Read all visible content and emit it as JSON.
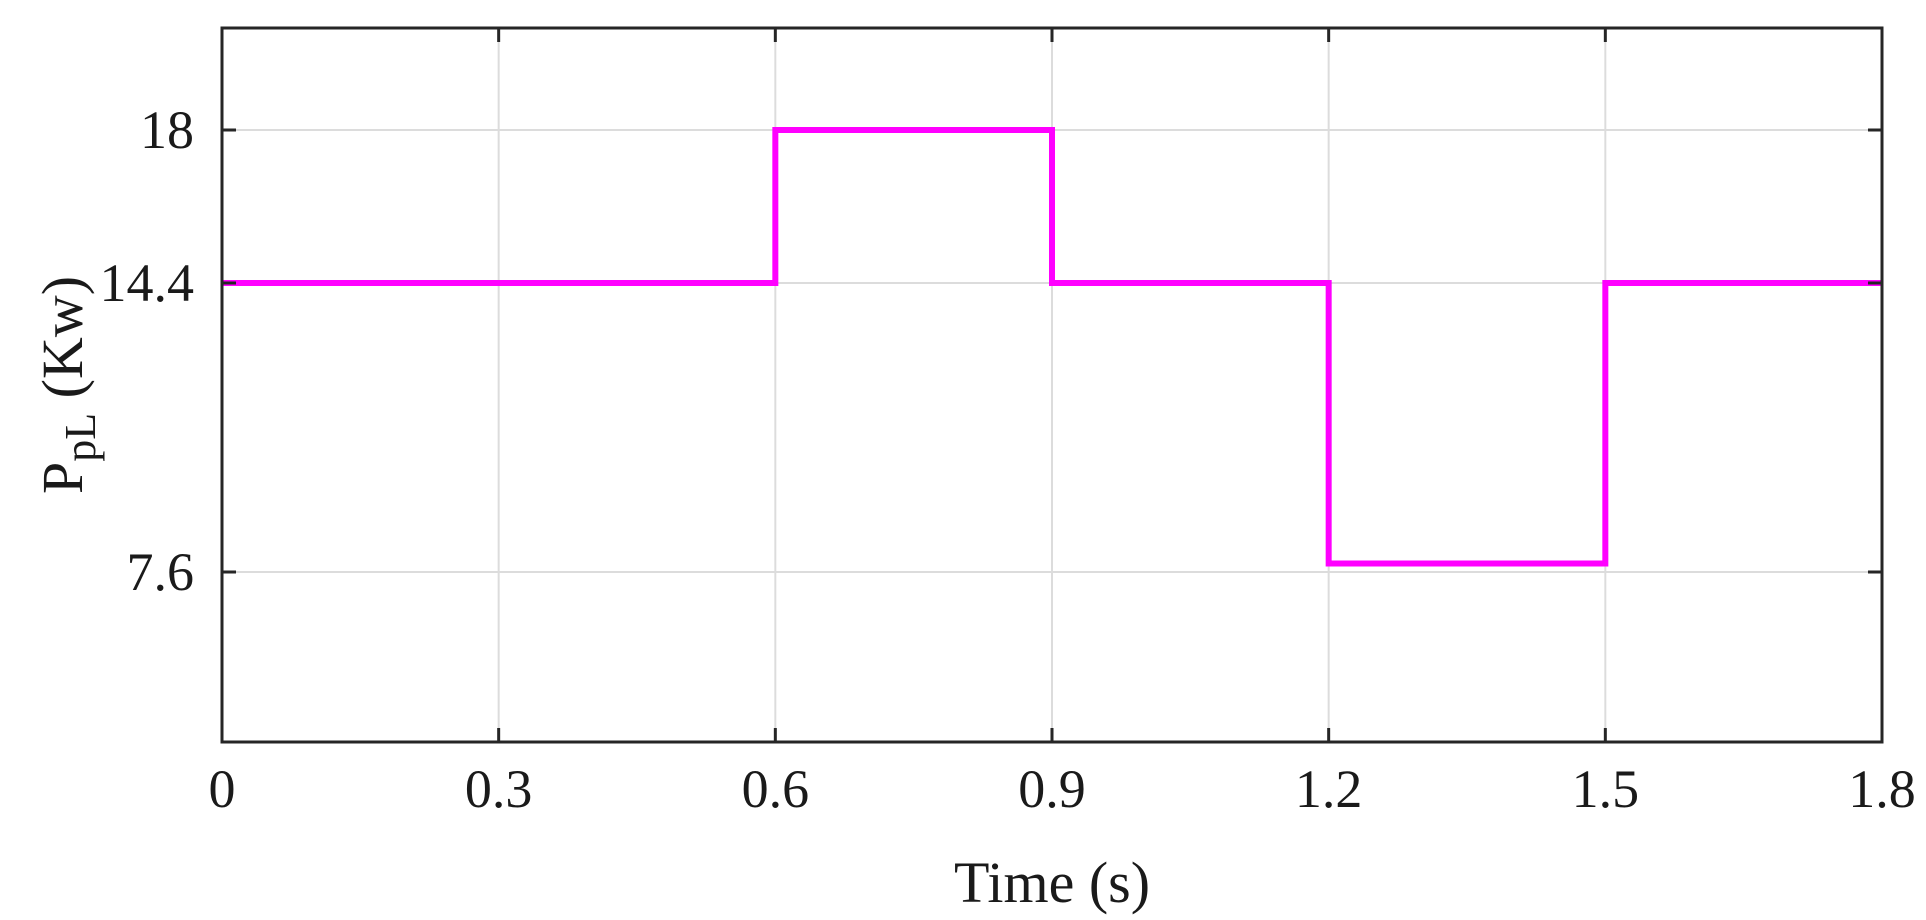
{
  "chart_data": {
    "type": "line",
    "xlabel": "Time (s)",
    "ylabel_main": "P",
    "ylabel_sub": "pL",
    "ylabel_unit": " (Kw)",
    "xlim": [
      0,
      1.8
    ],
    "ylim": [
      3.6,
      20.4
    ],
    "x_ticks": [
      0,
      0.3,
      0.6,
      0.9,
      1.2,
      1.5,
      1.8
    ],
    "x_tick_labels": [
      "0",
      "0.3",
      "0.6",
      "0.9",
      "1.2",
      "1.5",
      "1.8"
    ],
    "y_ticks": [
      7.6,
      14.4,
      18
    ],
    "y_tick_labels": [
      "7.6",
      "14.4",
      "18"
    ],
    "grid": true,
    "series": [
      {
        "color": "#ff00ff",
        "step": true,
        "x": [
          0,
          0.6,
          0.6,
          0.9,
          0.9,
          1.2,
          1.2,
          1.5,
          1.5,
          1.8
        ],
        "y": [
          14.4,
          14.4,
          18,
          18,
          14.4,
          14.4,
          7.8,
          7.8,
          14.4,
          14.4
        ]
      }
    ]
  }
}
